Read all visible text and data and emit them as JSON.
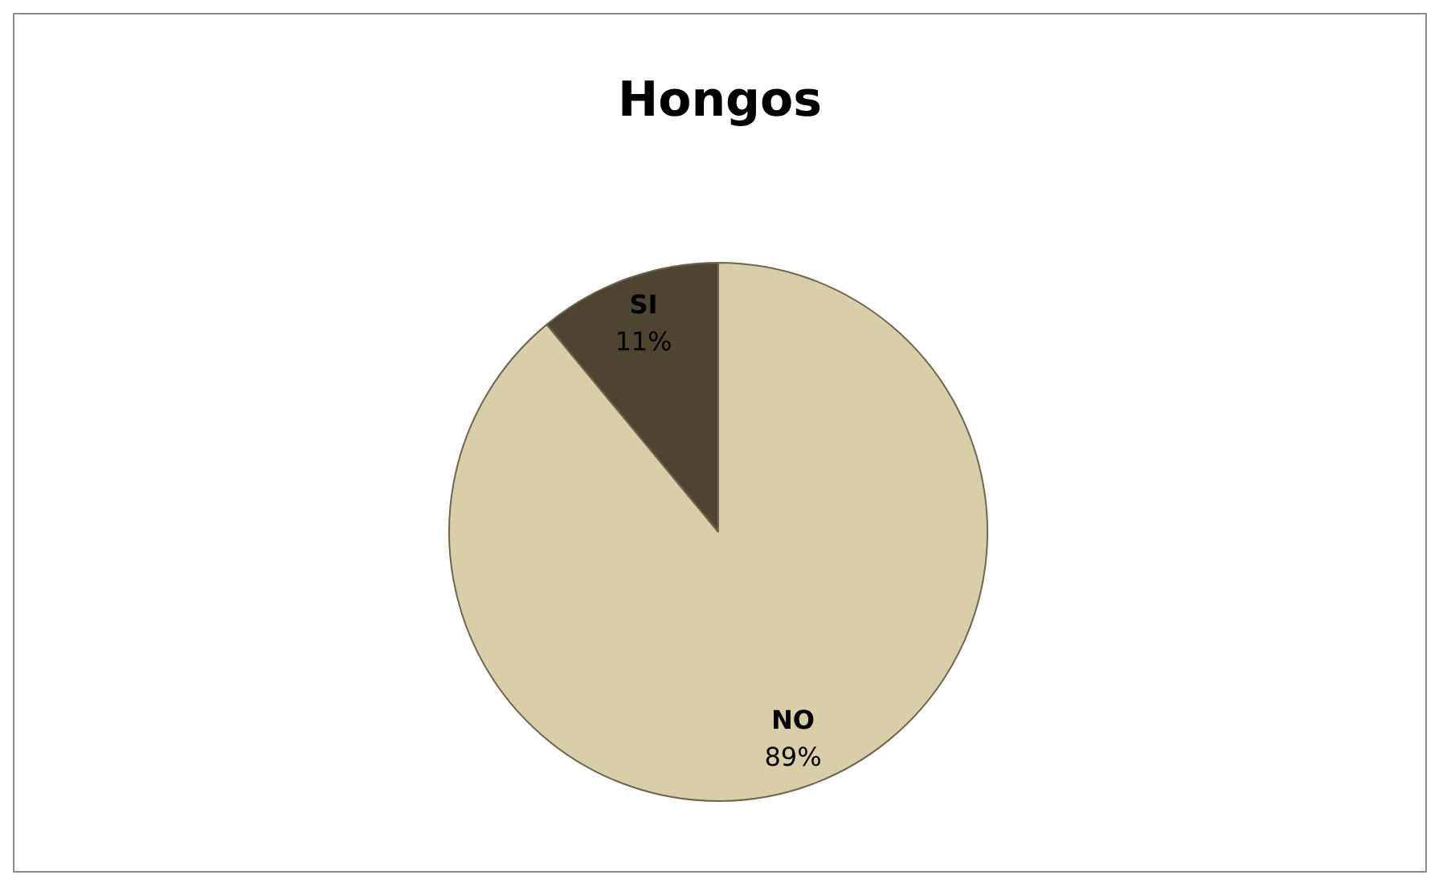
{
  "chart_data": {
    "type": "pie",
    "title": "Hongos",
    "categories": [
      "NO",
      "SI"
    ],
    "values": [
      89,
      11
    ],
    "colors": [
      "#d8cfa8",
      "#4e4530"
    ],
    "value_labels": [
      "89%",
      "11%"
    ]
  }
}
